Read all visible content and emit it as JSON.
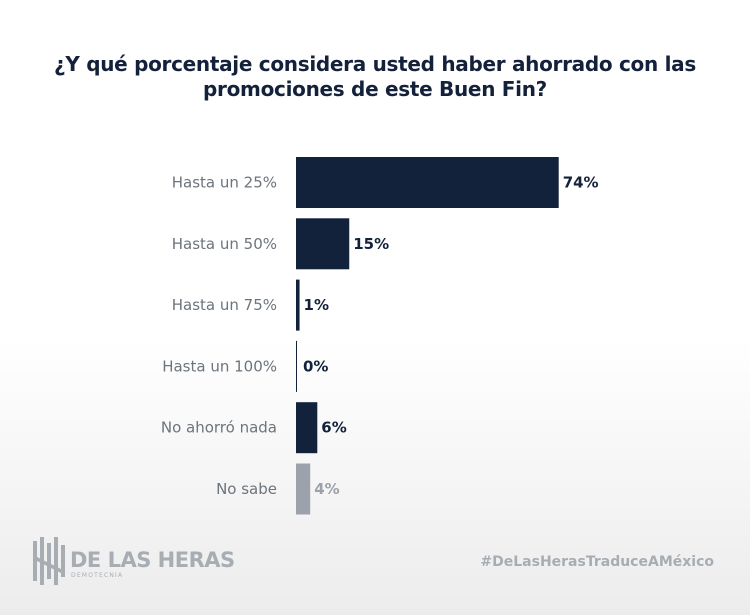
{
  "brand": {
    "logo_name": "DE LAS HERAS",
    "logo_sub": "DEMOTECNIA",
    "hashtag": "#DeLasHerasTraduceAMéxico"
  },
  "colors": {
    "bar": "#13223b",
    "bar_muted": "#9ba2ab",
    "label": "#6c747c",
    "value": "#13223b",
    "value_muted": "#9ba2ab"
  },
  "chart_data": {
    "type": "bar",
    "orientation": "horizontal",
    "title": "¿Y qué porcentaje considera usted haber ahorrado con las promociones de este Buen Fin?",
    "categories": [
      "Hasta un 25%",
      "Hasta un 50%",
      "Hasta un 75%",
      "Hasta un 100%",
      "No ahorró nada",
      "No sabe"
    ],
    "values": [
      74,
      15,
      1,
      0,
      6,
      4
    ],
    "value_labels": [
      "74%",
      "15%",
      "1%",
      "0%",
      "6%",
      "4%"
    ],
    "muted": [
      false,
      false,
      false,
      false,
      false,
      true
    ],
    "unit": "%",
    "xlim": [
      0,
      100
    ],
    "grid": false,
    "legend": "none"
  }
}
